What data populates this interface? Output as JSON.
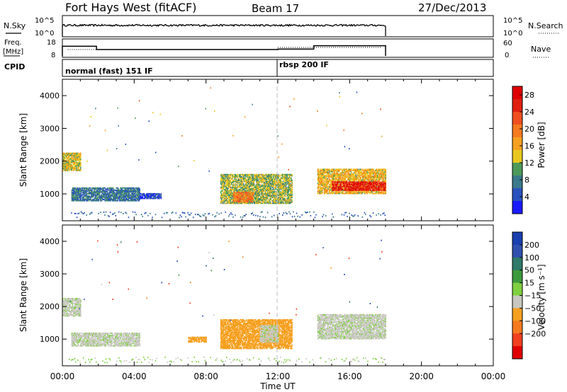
{
  "header": {
    "station": "Fort Hays West (fitACF)",
    "beam": "Beam 17",
    "date": "27/Dec/2013"
  },
  "panels": {
    "nsky": {
      "label": "N.Sky",
      "right_label": "N.Search",
      "tick_top": "10^5",
      "tick_bottom": "10^0",
      "right_tick_top": "10^5",
      "right_tick_bottom": "10^0"
    },
    "freq": {
      "label_line1": "Freq.",
      "label_line2": "[MHz]",
      "tick_top": "18",
      "tick_bottom": "8",
      "right_label": "Nave",
      "right_tick_top": "60",
      "right_tick_bottom": "0"
    },
    "cpid": {
      "label": "CPID",
      "modes": [
        {
          "label": "normal (fast) 151 IF",
          "start_hour": 0
        },
        {
          "label": "rbsp 200 IF",
          "start_hour": 12
        }
      ]
    }
  },
  "chart_data": [
    {
      "type": "heatmap",
      "name": "power",
      "ylabel": "Slant Range [km]",
      "xlabel": "Time UT",
      "x_ticks": [
        "00:00",
        "04:00",
        "08:00",
        "12:00",
        "16:00",
        "20:00",
        "00:00"
      ],
      "xlim_hours": [
        0,
        24
      ],
      "y_ticks": [
        1000,
        2000,
        3000,
        4000
      ],
      "ylim_km": [
        180,
        4500
      ],
      "colorbar": {
        "label": "Power [dB]",
        "ticks": [
          4,
          8,
          12,
          16,
          20,
          24,
          28
        ],
        "range": [
          0,
          30
        ],
        "colors": [
          "#1a1aff",
          "#2a52be",
          "#3a7a8a",
          "#4c9a5a",
          "#e8c820",
          "#f5a020",
          "#f57a20",
          "#f05020",
          "#e02010",
          "#e00000"
        ]
      },
      "regions": [
        {
          "t0": 0.0,
          "t1": 1.0,
          "r0": 1700,
          "r1": 2250,
          "value": 14
        },
        {
          "t0": 0.5,
          "t1": 4.3,
          "r0": 780,
          "r1": 1180,
          "value": 7
        },
        {
          "t0": 4.3,
          "t1": 5.5,
          "r0": 850,
          "r1": 1000,
          "value": 4
        },
        {
          "t0": 8.8,
          "t1": 12.8,
          "r0": 700,
          "r1": 1600,
          "value": 12
        },
        {
          "t0": 9.5,
          "t1": 10.6,
          "r0": 750,
          "r1": 1050,
          "value": 20
        },
        {
          "t0": 14.2,
          "t1": 18.0,
          "r0": 1000,
          "r1": 1750,
          "value": 15
        },
        {
          "t0": 15.0,
          "t1": 18.0,
          "r0": 1100,
          "r1": 1350,
          "value": 26
        }
      ]
    },
    {
      "type": "heatmap",
      "name": "velocity",
      "ylabel": "Slant Range [km]",
      "xlabel": "Time UT",
      "x_ticks": [
        "00:00",
        "04:00",
        "08:00",
        "12:00",
        "16:00",
        "20:00",
        "00:00"
      ],
      "xlim_hours": [
        0,
        24
      ],
      "y_ticks": [
        1000,
        2000,
        3000,
        4000
      ],
      "ylim_km": [
        180,
        4500
      ],
      "colorbar": {
        "label": "Velocity [m s⁻¹]",
        "ticks": [
          "200",
          "100",
          "50",
          "15",
          "−15",
          "−50",
          "−100",
          "−200"
        ],
        "colors": [
          "#1a3fb0",
          "#3050b0",
          "#2f7a6a",
          "#3c9a3c",
          "#7fd040",
          "#c8c8c0",
          "#f5a020",
          "#f57a20",
          "#f04020",
          "#e00000"
        ]
      },
      "regions": [
        {
          "t0": 0.0,
          "t1": 1.0,
          "r0": 1700,
          "r1": 2250,
          "value": 0
        },
        {
          "t0": 0.5,
          "t1": 4.3,
          "r0": 780,
          "r1": 1180,
          "value": 0
        },
        {
          "t0": 7.0,
          "t1": 8.0,
          "r0": 900,
          "r1": 1050,
          "value": -30
        },
        {
          "t0": 8.8,
          "t1": 12.8,
          "r0": 700,
          "r1": 1600,
          "value": -30
        },
        {
          "t0": 11.0,
          "t1": 12.0,
          "r0": 900,
          "r1": 1400,
          "value": 0
        },
        {
          "t0": 14.2,
          "t1": 18.0,
          "r0": 1000,
          "r1": 1750,
          "value": 0
        }
      ]
    }
  ]
}
